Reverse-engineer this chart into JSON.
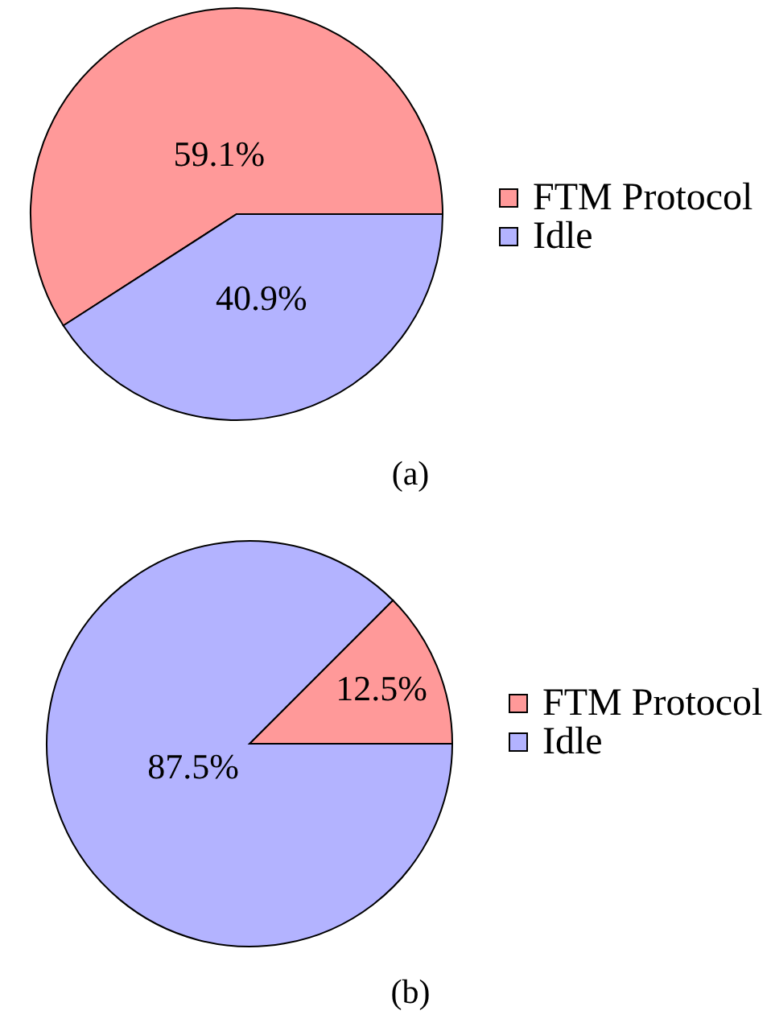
{
  "chart_data": [
    {
      "type": "pie",
      "categories": [
        "FTM Protocol",
        "Idle"
      ],
      "values": [
        59.1,
        40.9
      ],
      "colors": [
        "#ff9999",
        "#b3b3ff"
      ],
      "value_labels": [
        "59.1%",
        "40.9%"
      ],
      "legend": "right",
      "annotations": [
        "(a)"
      ]
    },
    {
      "type": "pie",
      "categories": [
        "FTM Protocol",
        "Idle"
      ],
      "values": [
        12.5,
        87.5
      ],
      "colors": [
        "#ff9999",
        "#b3b3ff"
      ],
      "value_labels": [
        "12.5%",
        "87.5%"
      ],
      "legend": "right",
      "annotations": [
        "(b)"
      ]
    }
  ]
}
